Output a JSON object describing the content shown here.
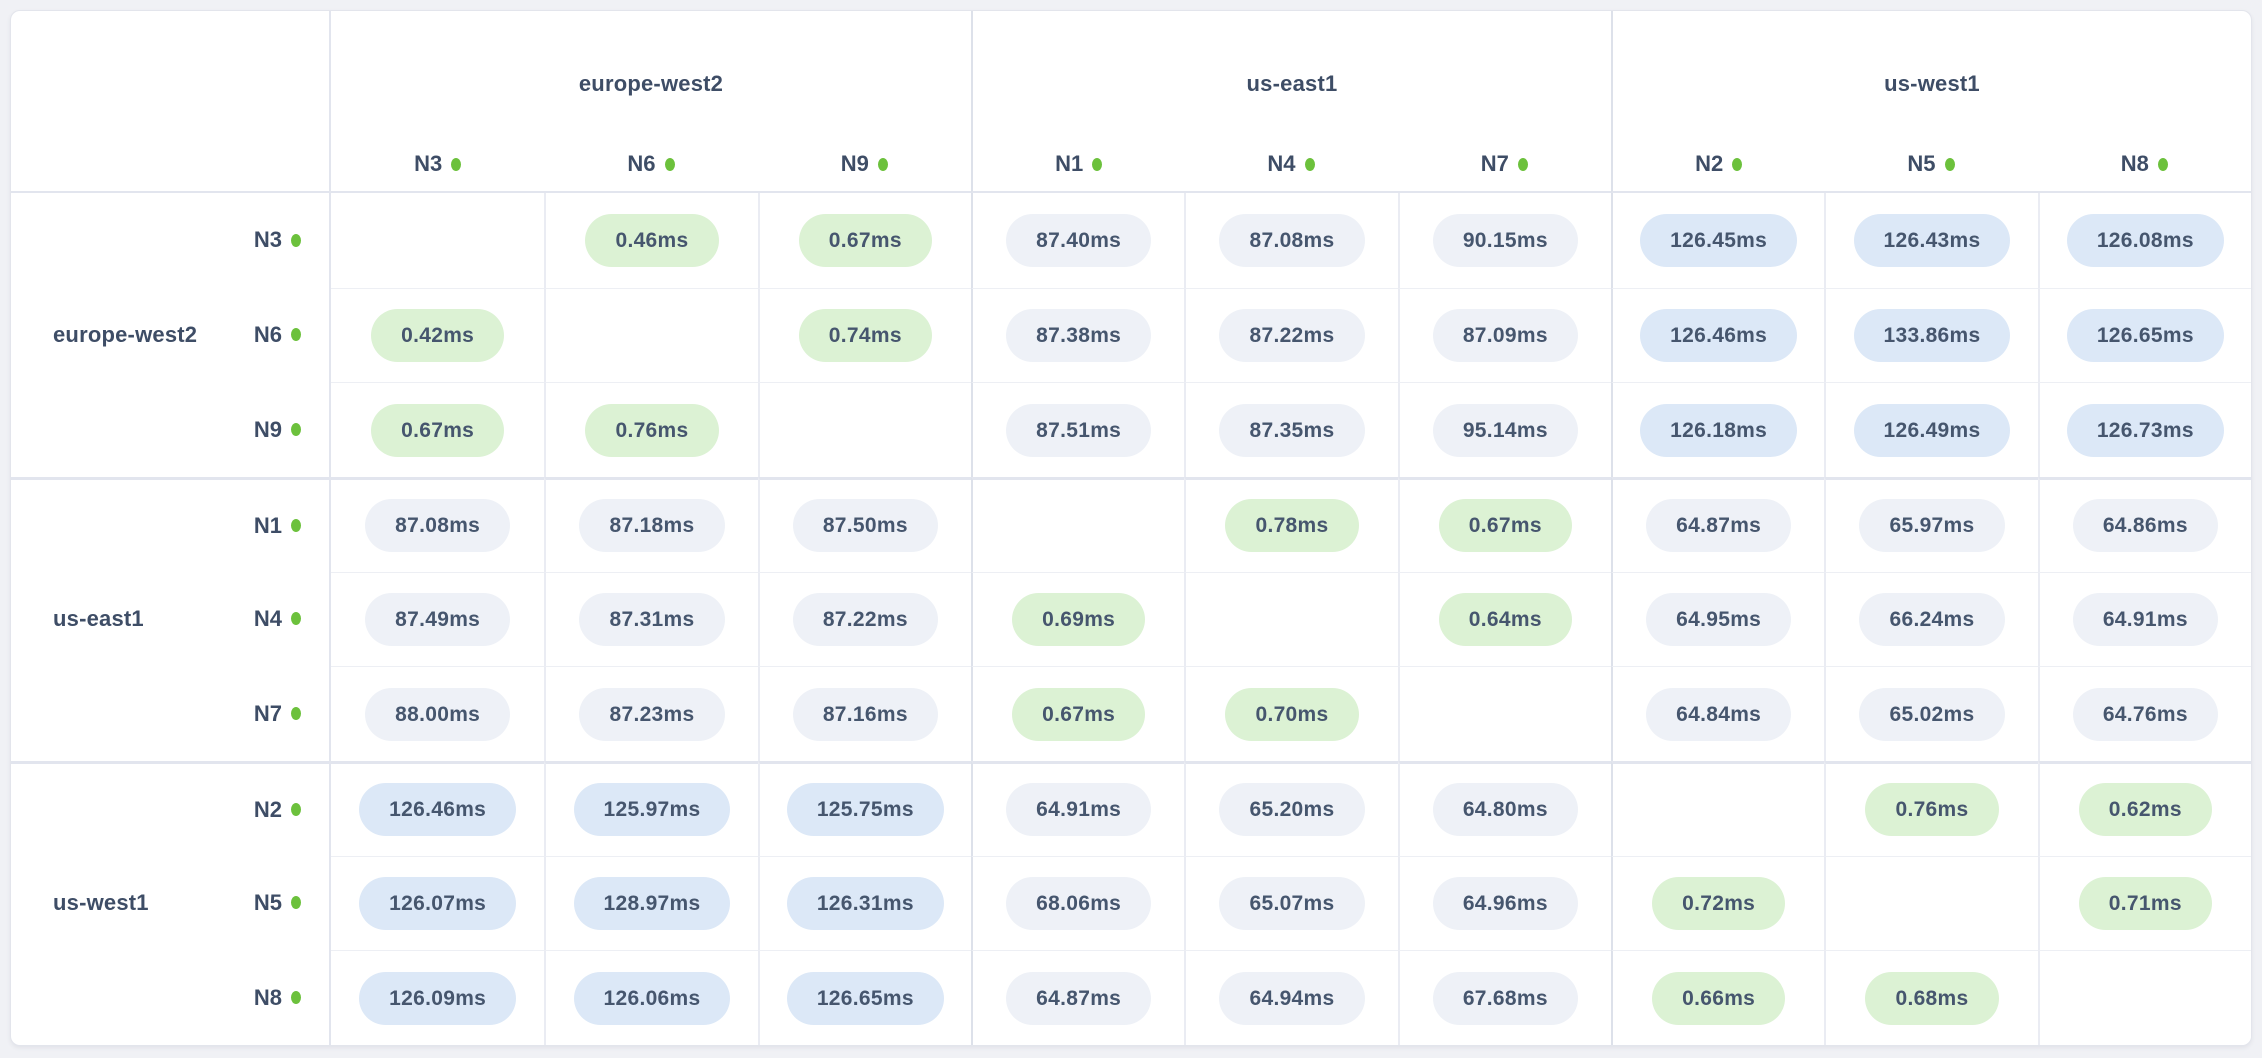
{
  "chart_data": {
    "type": "heatmap",
    "unit": "ms",
    "legend": {
      "intra_region_low_color": "#dcf2d4",
      "inter_region_mid_color": "#eef1f7",
      "inter_region_high_color": "#dce8f7",
      "node_live_dot_color": "#6cc13c",
      "text_color": "#46566e"
    },
    "column_groups": [
      {
        "region": "europe-west2",
        "nodes": [
          "N3",
          "N6",
          "N9"
        ]
      },
      {
        "region": "us-east1",
        "nodes": [
          "N1",
          "N4",
          "N7"
        ]
      },
      {
        "region": "us-west1",
        "nodes": [
          "N2",
          "N5",
          "N8"
        ]
      }
    ],
    "rows": [
      {
        "region": "europe-west2",
        "node": "N3",
        "values": [
          null,
          0.46,
          0.67,
          87.4,
          87.08,
          90.15,
          126.45,
          126.43,
          126.08
        ]
      },
      {
        "region": "europe-west2",
        "node": "N6",
        "values": [
          0.42,
          null,
          0.74,
          87.38,
          87.22,
          87.09,
          126.46,
          133.86,
          126.65
        ]
      },
      {
        "region": "europe-west2",
        "node": "N9",
        "values": [
          0.67,
          0.76,
          null,
          87.51,
          87.35,
          95.14,
          126.18,
          126.49,
          126.73
        ]
      },
      {
        "region": "us-east1",
        "node": "N1",
        "values": [
          87.08,
          87.18,
          87.5,
          null,
          0.78,
          0.67,
          64.87,
          65.97,
          64.86
        ]
      },
      {
        "region": "us-east1",
        "node": "N4",
        "values": [
          87.49,
          87.31,
          87.22,
          0.69,
          null,
          0.64,
          64.95,
          66.24,
          64.91
        ]
      },
      {
        "region": "us-east1",
        "node": "N7",
        "values": [
          88.0,
          87.23,
          87.16,
          0.67,
          0.7,
          null,
          64.84,
          65.02,
          64.76
        ]
      },
      {
        "region": "us-west1",
        "node": "N2",
        "values": [
          126.46,
          125.97,
          125.75,
          64.91,
          65.2,
          64.8,
          null,
          0.76,
          0.62
        ]
      },
      {
        "region": "us-west1",
        "node": "N5",
        "values": [
          126.07,
          128.97,
          126.31,
          68.06,
          65.07,
          64.96,
          0.72,
          null,
          0.71
        ]
      },
      {
        "region": "us-west1",
        "node": "N8",
        "values": [
          126.09,
          126.06,
          126.65,
          64.87,
          64.94,
          67.68,
          0.66,
          0.68,
          null
        ]
      }
    ]
  }
}
